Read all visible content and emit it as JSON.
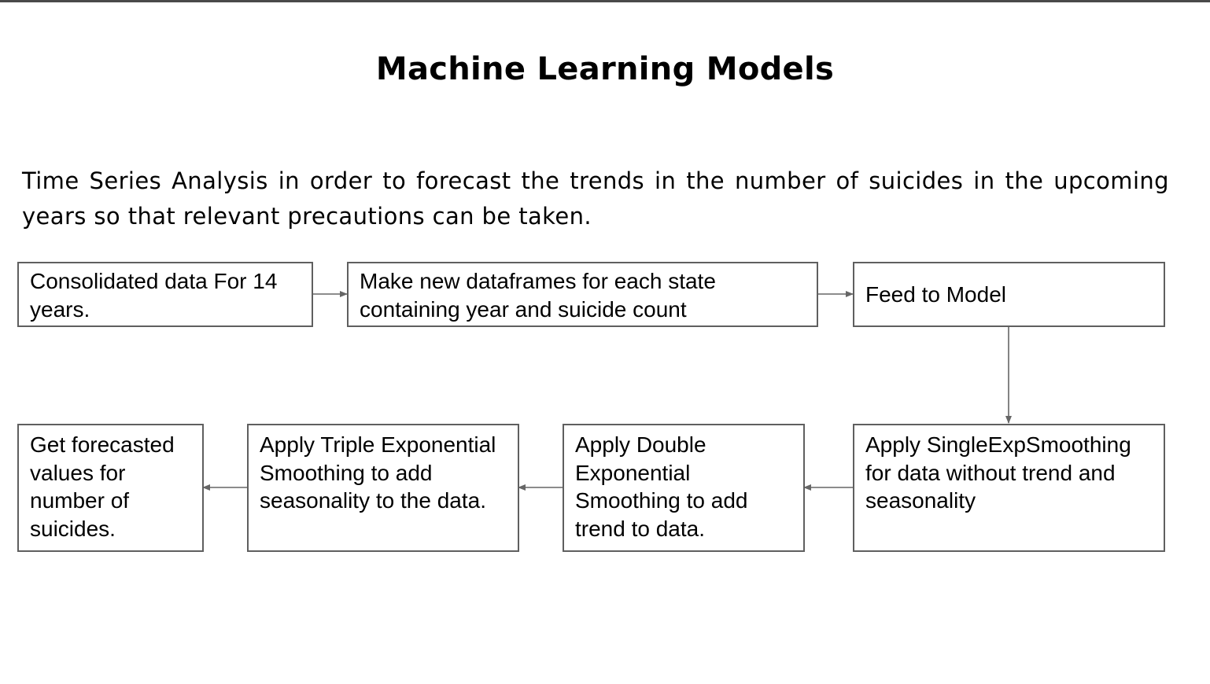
{
  "title": "Machine Learning Models",
  "intro": "Time Series Analysis in order to forecast the trends in the number of suicides in the upcoming years so that relevant precautions can be taken.",
  "boxes": {
    "consolidated": "Consolidated data For 14 years.",
    "make_dataframes": "Make new dataframes for each state containing year and suicide count",
    "feed_model": "Feed to Model",
    "single_exp": "Apply SingleExpSmoothing for data without trend and seasonality",
    "double_exp": "Apply Double Exponential Smoothing to add trend to data.",
    "triple_exp": "Apply Triple Exponential Smoothing to add seasonality to the data.",
    "forecast": "Get forecasted values for number of suicides."
  },
  "colors": {
    "border": "#5f5f5f",
    "arrow": "#666666",
    "top_rule": "#4a4a4a"
  }
}
